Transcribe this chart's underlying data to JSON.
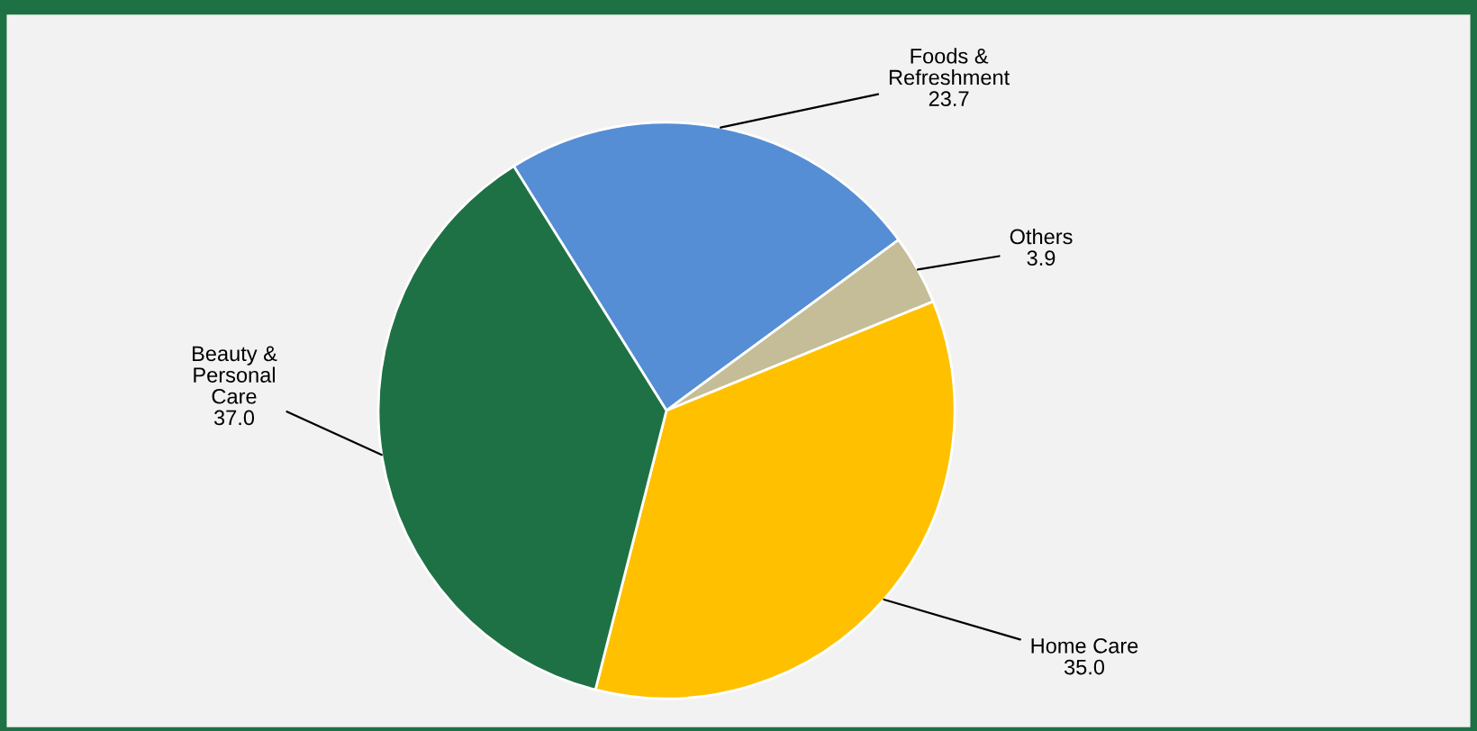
{
  "chart_data": {
    "type": "pie",
    "categories": [
      "Foods &\nRefreshment",
      "Others",
      "Home Care",
      "Beauty &\nPersonal\nCare"
    ],
    "values": [
      23.7,
      3.9,
      35.0,
      37.0
    ],
    "colors": [
      "#558ed5",
      "#c4bd97",
      "#ffc000",
      "#1e7145"
    ],
    "value_labels": [
      "23.7",
      "3.9",
      "35.0",
      "37.0"
    ]
  }
}
